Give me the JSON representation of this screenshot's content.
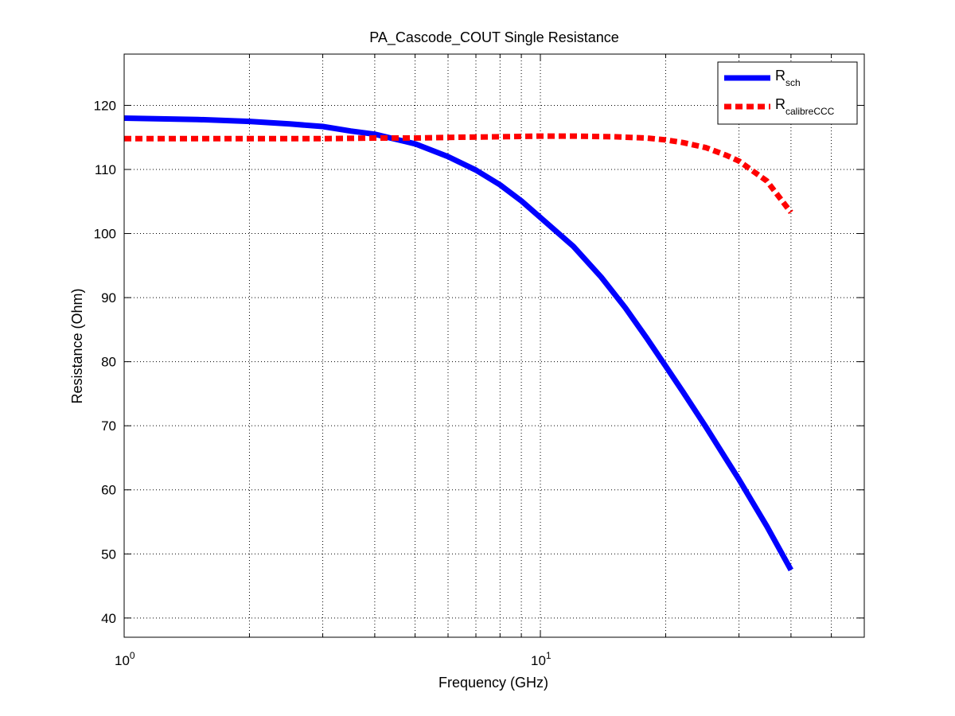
{
  "chart_data": {
    "type": "line",
    "title": "PA_Cascode_COUT Single Resistance",
    "xlabel": "Frequency (GHz)",
    "ylabel": "Resistance (Ohm)",
    "x_scale": "log",
    "xlim": [
      1,
      60
    ],
    "ylim": [
      37,
      128
    ],
    "grid": true,
    "legend_position": "top-right",
    "x_ticks": [
      {
        "value": 1,
        "base": "10",
        "exp": "0"
      },
      {
        "value": 10,
        "base": "10",
        "exp": "1"
      }
    ],
    "y_ticks": [
      "40",
      "50",
      "60",
      "70",
      "80",
      "90",
      "100",
      "110",
      "120"
    ],
    "series": [
      {
        "name_main": "R",
        "name_sub": "sch",
        "color": "#0000ff",
        "style": "solid",
        "x": [
          1,
          1.5,
          2,
          2.5,
          3,
          3.5,
          4,
          4.5,
          5,
          6,
          7,
          8,
          9,
          10,
          12,
          14,
          16,
          18,
          20,
          22,
          25,
          28,
          30,
          35,
          40
        ],
        "y": [
          118,
          117.8,
          117.5,
          117.1,
          116.7,
          116.0,
          115.5,
          114.7,
          114.0,
          112.0,
          109.9,
          107.6,
          105.1,
          102.5,
          98.0,
          93.2,
          88.4,
          83.7,
          79.3,
          75.3,
          69.8,
          64.7,
          61.6,
          54.3,
          47.5
        ]
      },
      {
        "name_main": "R",
        "name_sub": "calibreCCC",
        "color": "#ff0000",
        "style": "dashed",
        "x": [
          1,
          2,
          3,
          4,
          5,
          6,
          8,
          10,
          12,
          15,
          18,
          20,
          22,
          25,
          28,
          30,
          35,
          40
        ],
        "y": [
          114.8,
          114.8,
          114.8,
          114.9,
          114.9,
          115.0,
          115.1,
          115.2,
          115.2,
          115.1,
          114.9,
          114.6,
          114.2,
          113.4,
          112.2,
          111.3,
          108.2,
          103.3
        ]
      }
    ]
  }
}
